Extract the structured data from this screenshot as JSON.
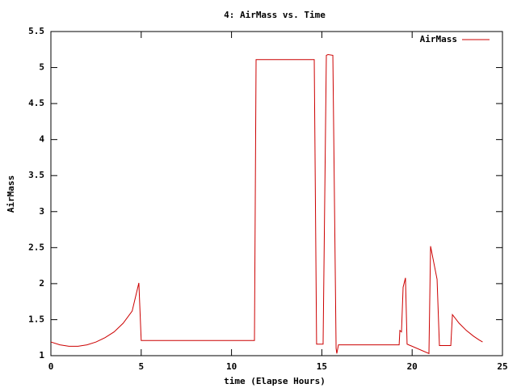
{
  "chart_data": {
    "type": "line",
    "title": "4: AirMass vs. Time",
    "x_label": "time (Elapse Hours)",
    "y_label": "AirMass",
    "x": [
      0,
      0.5,
      1,
      1.5,
      2,
      2.5,
      3,
      3.5,
      4,
      4.5,
      4.87,
      5.0,
      11.27,
      11.36,
      14.58,
      14.71,
      15.07,
      15.25,
      15.34,
      15.61,
      15.79,
      15.83,
      15.92,
      19.28,
      19.32,
      19.41,
      19.5,
      19.63,
      19.72,
      20.93,
      21.02,
      21.38,
      21.51,
      22.14,
      22.23,
      22.6,
      23.0,
      23.4,
      23.7,
      23.9
    ],
    "series": [
      {
        "name": "AirMass",
        "color": "#cc0000",
        "values": [
          1.19,
          1.15,
          1.13,
          1.13,
          1.15,
          1.19,
          1.25,
          1.33,
          1.45,
          1.62,
          2.01,
          1.21,
          1.21,
          5.11,
          5.11,
          1.16,
          1.16,
          5.17,
          5.18,
          5.17,
          1.1,
          1.03,
          1.15,
          1.15,
          1.35,
          1.33,
          1.95,
          2.08,
          1.16,
          1.03,
          2.52,
          2.06,
          1.14,
          1.14,
          1.57,
          1.45,
          1.35,
          1.27,
          1.22,
          1.19
        ]
      }
    ],
    "xlim": [
      0,
      25
    ],
    "ylim": [
      1,
      5.5
    ],
    "xticks": [
      0,
      5,
      10,
      15,
      20,
      25
    ],
    "yticks": [
      1,
      1.5,
      2,
      2.5,
      3,
      3.5,
      4,
      4.5,
      5,
      5.5
    ],
    "legend": "top-right"
  }
}
